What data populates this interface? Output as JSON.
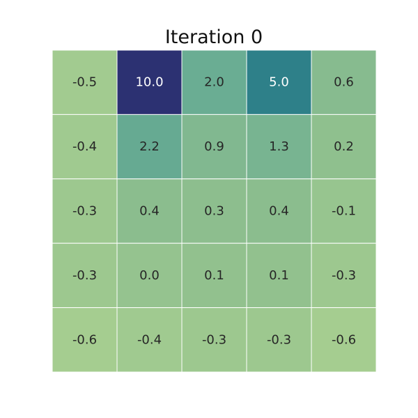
{
  "chart_data": {
    "type": "heatmap",
    "title": "Iteration 0",
    "rows": 5,
    "cols": 5,
    "values": [
      [
        -0.5,
        10.0,
        2.0,
        5.0,
        0.6
      ],
      [
        -0.4,
        2.2,
        0.9,
        1.3,
        0.2
      ],
      [
        -0.3,
        0.4,
        0.3,
        0.4,
        -0.1
      ],
      [
        -0.3,
        0.0,
        0.1,
        0.1,
        -0.3
      ],
      [
        -0.6,
        -0.4,
        -0.3,
        -0.3,
        -0.6
      ]
    ],
    "colormap": "crest",
    "colormap_stops": [
      "#a5cd90",
      "#8ebf8e",
      "#69ac93",
      "#2e8189",
      "#2c3172"
    ],
    "value_range": [
      -0.6,
      10.0
    ],
    "cell_border_color": "#ffffff",
    "label_color_dark": "#262626",
    "label_color_light": "#ffffff",
    "grid": false,
    "colorbar": false,
    "xlabel": "",
    "ylabel": ""
  }
}
